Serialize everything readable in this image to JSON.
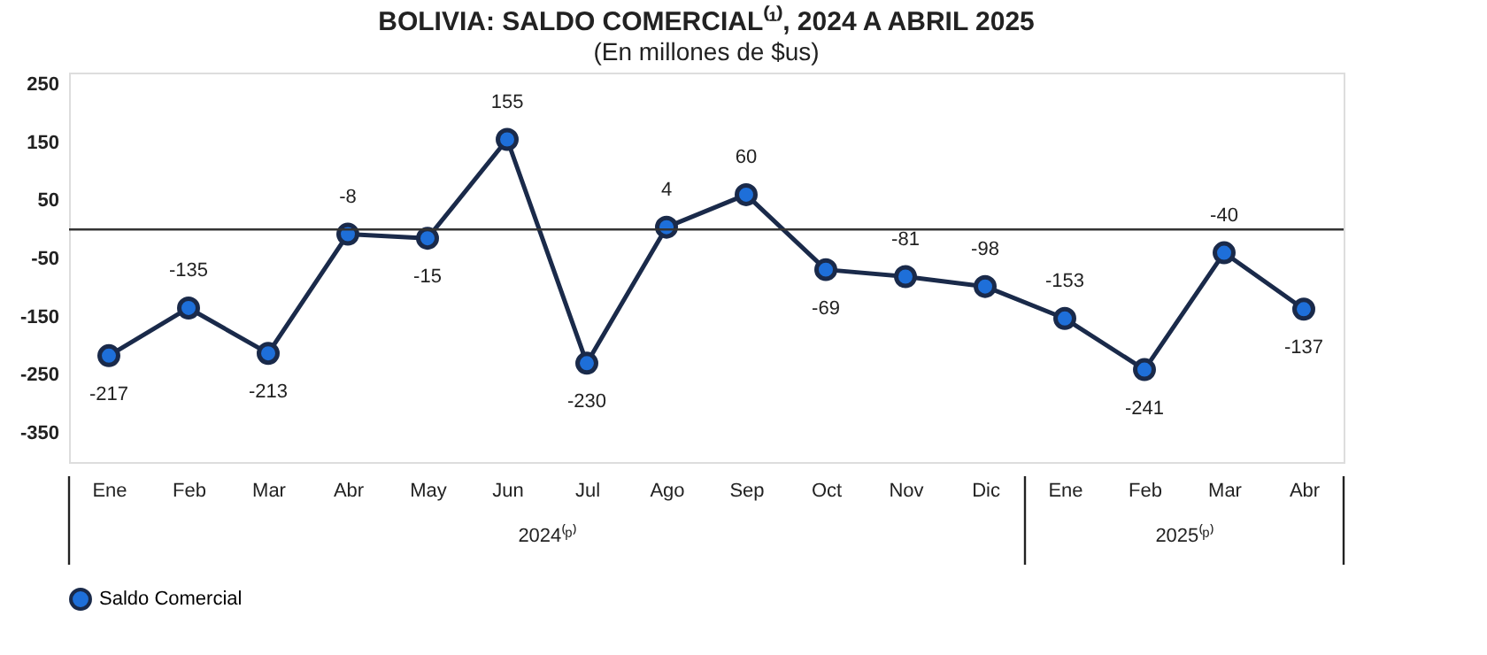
{
  "chart_data": {
    "type": "line",
    "title": "BOLIVIA: SALDO COMERCIAL⁽¹⁾, 2024 A ABRIL 2025",
    "subtitle": "(En millones de $us)",
    "categories": [
      "Ene",
      "Feb",
      "Mar",
      "Abr",
      "May",
      "Jun",
      "Jul",
      "Ago",
      "Sep",
      "Oct",
      "Nov",
      "Dic",
      "Ene",
      "Feb",
      "Mar",
      "Abr"
    ],
    "series": [
      {
        "name": "Saldo Comercial",
        "color": "#1a2a4a",
        "values": [
          -217,
          -135,
          -213,
          -8,
          -15,
          155,
          -230,
          4,
          60,
          -69,
          -81,
          -98,
          -153,
          -241,
          -40,
          -137
        ]
      }
    ],
    "ylim": [
      -400,
      270
    ],
    "yticks": [
      250,
      150,
      50,
      -50,
      -150,
      -250,
      -350
    ],
    "ref_lines": [
      {
        "axis": "y",
        "value": 0,
        "label": null,
        "color": "#333333"
      }
    ],
    "annotations": [
      "2024⁽ᵖ⁾",
      "2025⁽ᵖ⁾"
    ],
    "data_labels": true,
    "marker": "circle",
    "line_style": "solid",
    "grid": false,
    "legend": "bottom"
  }
}
